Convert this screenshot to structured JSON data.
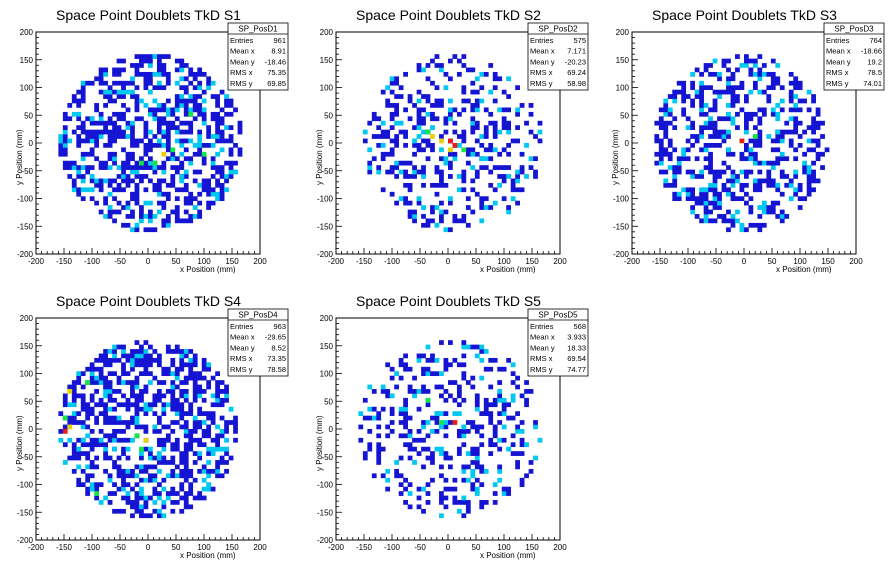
{
  "figure": {
    "background": "#ffffff",
    "palette": {
      "low": "#1414d2",
      "mid1": "#00c8f0",
      "mid2": "#14e646",
      "high1": "#e6d20a",
      "high2": "#e61e14"
    }
  },
  "chart_data": [
    {
      "type": "heatmap",
      "title": "Space Point Doublets TkD S1",
      "xlabel": "x Position (mm)",
      "ylabel": "y Position (mm)",
      "xlim": [
        -200,
        200
      ],
      "ylim": [
        -200,
        200
      ],
      "xticks": [
        "-200",
        "-150",
        "-100",
        "-50",
        "0",
        "50",
        "100",
        "150",
        "200"
      ],
      "yticks": [
        "-200",
        "-150",
        "-100",
        "-50",
        "0",
        "50",
        "100",
        "150",
        "200"
      ],
      "stats": {
        "name": "SP_PosD1",
        "rows": [
          [
            "Entries",
            "961"
          ],
          [
            "Mean x",
            "8.91"
          ],
          [
            "Mean y",
            "-18.46"
          ],
          [
            "RMS x",
            "75.35"
          ],
          [
            "RMS y",
            "69.85"
          ]
        ]
      },
      "extent": {
        "x": [
          -160,
          170
        ],
        "y": [
          -160,
          160
        ]
      },
      "occupancy": 0.5,
      "seed": 11,
      "hot": [
        [
          30,
          -20,
          "high1"
        ],
        [
          45,
          -10,
          "mid2"
        ],
        [
          10,
          -35,
          "mid2"
        ],
        [
          -10,
          -40,
          "mid2"
        ],
        [
          75,
          50,
          "mid2"
        ],
        [
          60,
          -60,
          "mid1"
        ],
        [
          -80,
          -70,
          "mid1"
        ],
        [
          -100,
          40,
          "mid1"
        ],
        [
          100,
          -20,
          "mid2"
        ]
      ]
    },
    {
      "type": "heatmap",
      "title": "Space Point Doublets TkD S2",
      "xlabel": "x Position (mm)",
      "ylabel": "y Position (mm)",
      "xlim": [
        -200,
        200
      ],
      "ylim": [
        -200,
        200
      ],
      "xticks": [
        "-200",
        "-150",
        "-100",
        "-50",
        "0",
        "50",
        "100",
        "150",
        "200"
      ],
      "yticks": [
        "-200",
        "-150",
        "-100",
        "-50",
        "0",
        "50",
        "100",
        "150",
        "200"
      ],
      "stats": {
        "name": "SP_PosD2",
        "rows": [
          [
            "Entries",
            "575"
          ],
          [
            "Mean x",
            "7.171"
          ],
          [
            "Mean y",
            "-20.23"
          ],
          [
            "RMS x",
            "69.24"
          ],
          [
            "RMS y",
            "58.98"
          ]
        ]
      },
      "extent": {
        "x": [
          -150,
          170
        ],
        "y": [
          -160,
          160
        ]
      },
      "occupancy": 0.3,
      "seed": 23,
      "hot": [
        [
          0,
          0,
          "high2"
        ],
        [
          -10,
          5,
          "high1"
        ],
        [
          -25,
          15,
          "high1"
        ],
        [
          15,
          -5,
          "high2"
        ],
        [
          30,
          -15,
          "mid2"
        ],
        [
          -40,
          20,
          "mid2"
        ],
        [
          45,
          -20,
          "mid1"
        ],
        [
          -55,
          25,
          "mid1"
        ],
        [
          60,
          -25,
          "mid1"
        ],
        [
          5,
          -12,
          "high1"
        ]
      ]
    },
    {
      "type": "heatmap",
      "title": "Space Point Doublets TkD S3",
      "xlabel": "x Position (mm)",
      "ylabel": "y Position (mm)",
      "xlim": [
        -200,
        200
      ],
      "ylim": [
        -200,
        200
      ],
      "xticks": [
        "-200",
        "-150",
        "-100",
        "-50",
        "0",
        "50",
        "100",
        "150",
        "200"
      ],
      "yticks": [
        "-200",
        "-150",
        "-100",
        "-50",
        "0",
        "50",
        "100",
        "150",
        "200"
      ],
      "stats": {
        "name": "SP_PosD3",
        "rows": [
          [
            "Entries",
            "764"
          ],
          [
            "Mean x",
            "-18.66"
          ],
          [
            "Mean y",
            "19.2"
          ],
          [
            "RMS x",
            "78.5"
          ],
          [
            "RMS y",
            "74.01"
          ]
        ]
      },
      "extent": {
        "x": [
          -160,
          150
        ],
        "y": [
          -160,
          160
        ]
      },
      "occupancy": 0.42,
      "seed": 37,
      "hot": [
        [
          -5,
          5,
          "high2"
        ],
        [
          20,
          10,
          "mid2"
        ],
        [
          -30,
          -10,
          "mid1"
        ],
        [
          10,
          -25,
          "mid1"
        ],
        [
          60,
          20,
          "mid1"
        ],
        [
          -60,
          40,
          "mid1"
        ]
      ]
    },
    {
      "type": "heatmap",
      "title": "Space Point Doublets TkD S4",
      "xlabel": "x Position (mm)",
      "ylabel": "y Position (mm)",
      "xlim": [
        -200,
        200
      ],
      "ylim": [
        -200,
        200
      ],
      "xticks": [
        "-200",
        "-150",
        "-100",
        "-50",
        "0",
        "50",
        "100",
        "150",
        "200"
      ],
      "yticks": [
        "-200",
        "-150",
        "-100",
        "-50",
        "0",
        "50",
        "100",
        "150",
        "200"
      ],
      "stats": {
        "name": "SP_PosD4",
        "rows": [
          [
            "Entries",
            "963"
          ],
          [
            "Mean x",
            "-29.65"
          ],
          [
            "Mean y",
            "8.52"
          ],
          [
            "RMS x",
            "73.35"
          ],
          [
            "RMS y",
            "78.58"
          ]
        ]
      },
      "extent": {
        "x": [
          -160,
          160
        ],
        "y": [
          -160,
          160
        ]
      },
      "occupancy": 0.52,
      "seed": 41,
      "hot": [
        [
          -145,
          -5,
          "high2"
        ],
        [
          -140,
          70,
          "high1"
        ],
        [
          -140,
          0,
          "high1"
        ],
        [
          -150,
          20,
          "mid2"
        ],
        [
          -5,
          -20,
          "high1"
        ],
        [
          -10,
          -35,
          "mid2"
        ],
        [
          -20,
          -10,
          "mid2"
        ],
        [
          -90,
          -115,
          "mid2"
        ],
        [
          -100,
          -110,
          "mid1"
        ],
        [
          -110,
          80,
          "mid2"
        ],
        [
          -90,
          90,
          "mid1"
        ],
        [
          -120,
          -20,
          "mid1"
        ],
        [
          -60,
          -40,
          "mid1"
        ]
      ]
    },
    {
      "type": "heatmap",
      "title": "Space Point Doublets TkD S5",
      "xlabel": "x Position (mm)",
      "ylabel": "y Position (mm)",
      "xlim": [
        -200,
        200
      ],
      "ylim": [
        -200,
        200
      ],
      "xticks": [
        "-200",
        "-150",
        "-100",
        "-50",
        "0",
        "50",
        "100",
        "150",
        "200"
      ],
      "yticks": [
        "-200",
        "-150",
        "-100",
        "-50",
        "0",
        "50",
        "100",
        "150",
        "200"
      ],
      "stats": {
        "name": "SP_PosD5",
        "rows": [
          [
            "Entries",
            "568"
          ],
          [
            "Mean x",
            "3.933"
          ],
          [
            "Mean y",
            "18.33"
          ],
          [
            "RMS x",
            "69.54"
          ],
          [
            "RMS y",
            "74.77"
          ]
        ]
      },
      "extent": {
        "x": [
          -160,
          170
        ],
        "y": [
          -160,
          160
        ]
      },
      "occupancy": 0.3,
      "seed": 59,
      "hot": [
        [
          15,
          15,
          "high2"
        ],
        [
          -15,
          10,
          "mid2"
        ],
        [
          -40,
          50,
          "mid2"
        ],
        [
          30,
          0,
          "mid1"
        ],
        [
          -10,
          0,
          "mid1"
        ],
        [
          60,
          90,
          "mid1"
        ],
        [
          -20,
          30,
          "mid1"
        ]
      ]
    }
  ]
}
